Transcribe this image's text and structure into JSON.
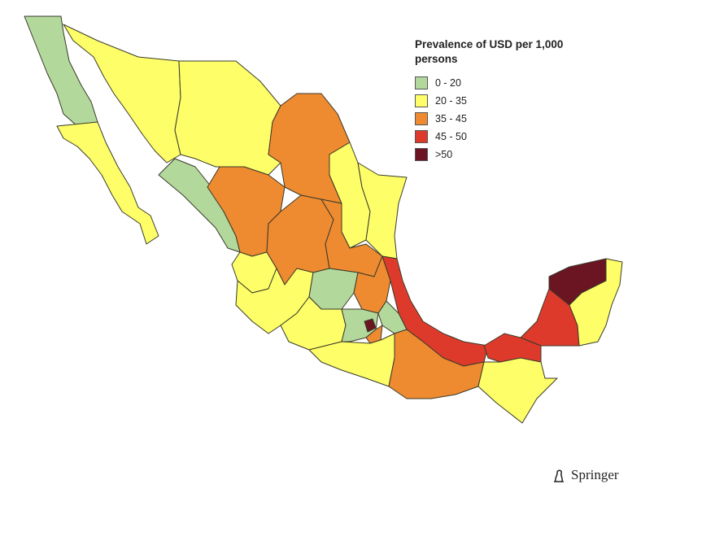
{
  "legend": {
    "title": "Prevalence of USD per 1,000 persons",
    "items": [
      {
        "label": "0 - 20",
        "color": "#b3d89b"
      },
      {
        "label": "20 - 35",
        "color": "#fefe68"
      },
      {
        "label": "35 - 45",
        "color": "#ee8a30"
      },
      {
        "label": "45 - 50",
        "color": "#dd3a2b"
      },
      {
        "label": ">50",
        "color": "#6b1522"
      }
    ]
  },
  "publisher": "Springer"
}
